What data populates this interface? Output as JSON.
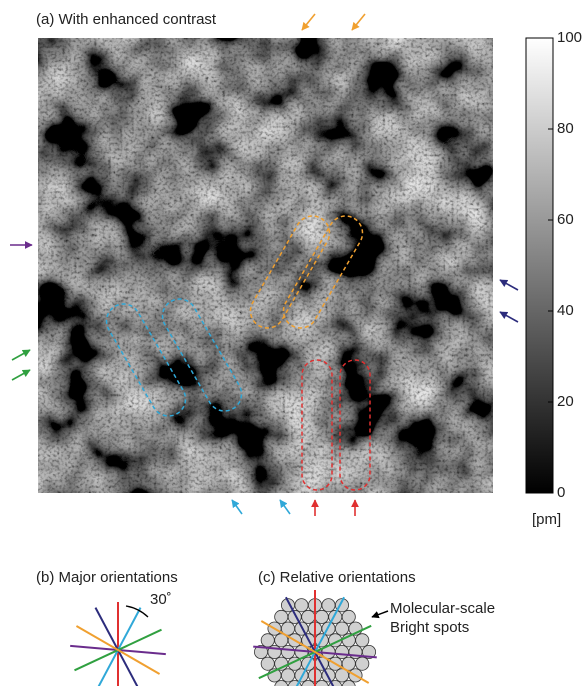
{
  "panel_a": {
    "title": "(a) With enhanced contrast"
  },
  "colorbar": {
    "lim": [
      0,
      100
    ],
    "ticks": [
      0,
      20,
      40,
      60,
      80,
      100
    ],
    "unit": "[pm]"
  },
  "panel_b": {
    "title": "(b) Major orientations",
    "angle_label": "30˚"
  },
  "panel_c": {
    "title": "(c) Relative orientations",
    "annotation": [
      "Molecular-scale",
      "Bright spots"
    ]
  }
}
